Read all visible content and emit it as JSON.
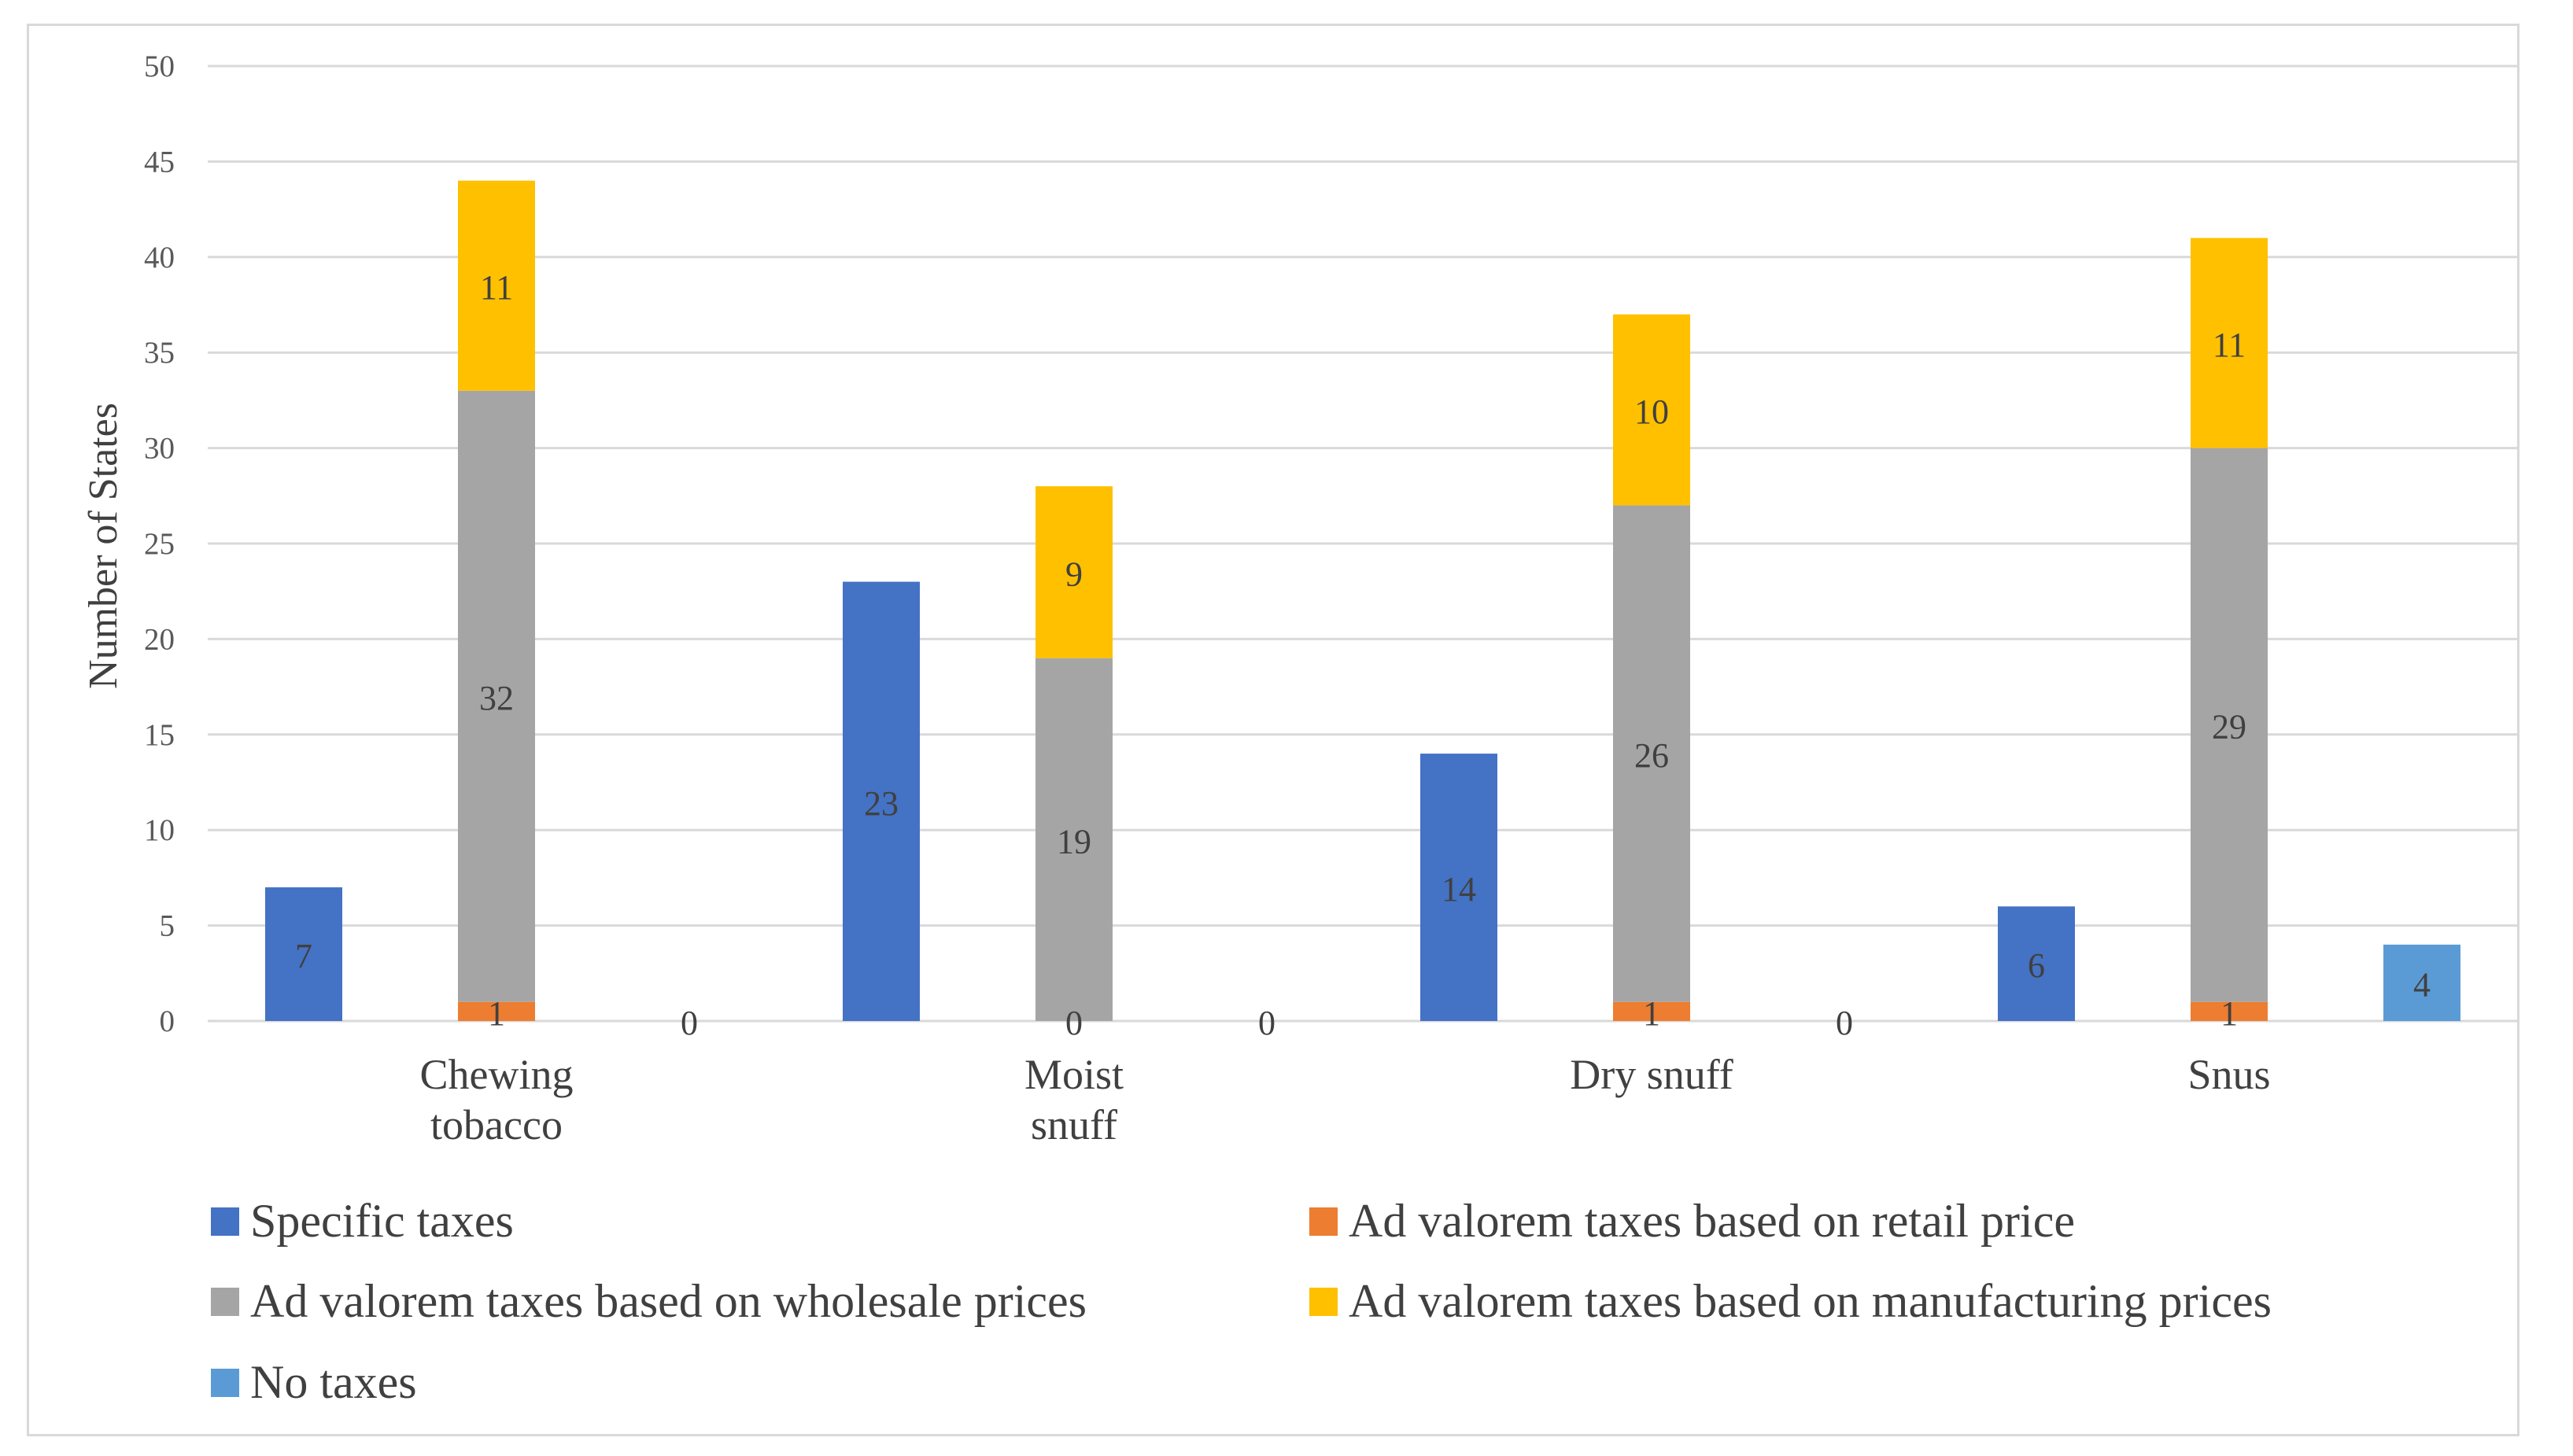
{
  "chart_data": {
    "type": "bar",
    "stacked": true,
    "title": "",
    "xlabel": "",
    "ylabel": "Number of States",
    "ylim": [
      0,
      50
    ],
    "ytick_step": 5,
    "ytick_labels": [
      "0",
      "5",
      "10",
      "15",
      "20",
      "25",
      "30",
      "35",
      "40",
      "45",
      "50"
    ],
    "grid": true,
    "legend_position": "bottom",
    "categories": [
      {
        "label": "Chewing tobacco",
        "lines": [
          "Chewing",
          "tobacco"
        ]
      },
      {
        "label": "Moist snuff",
        "lines": [
          "Moist",
          "snuff"
        ]
      },
      {
        "label": "Dry snuff",
        "lines": [
          "Dry snuff"
        ]
      },
      {
        "label": "Snus",
        "lines": [
          "Snus"
        ]
      }
    ],
    "series": [
      {
        "key": "specific",
        "name": "Specific taxes",
        "color": "#4472c4",
        "values": [
          7,
          23,
          14,
          6
        ],
        "value_labels": [
          "7",
          "23",
          "14",
          "6"
        ]
      },
      {
        "key": "retail",
        "name": "Ad valorem taxes based on retail price",
        "color": "#ed7d31",
        "values": [
          1,
          0,
          1,
          1
        ],
        "value_labels": [
          "1",
          "0",
          "1",
          "1"
        ]
      },
      {
        "key": "wholesale",
        "name": "Ad valorem taxes based on wholesale prices",
        "color": "#a5a5a5",
        "values": [
          32,
          19,
          26,
          29
        ],
        "value_labels": [
          "32",
          "19",
          "26",
          "29"
        ]
      },
      {
        "key": "manufacturing",
        "name": "Ad valorem taxes based on manufacturing prices",
        "color": "#ffc000",
        "values": [
          11,
          9,
          10,
          11
        ],
        "value_labels": [
          "11",
          "9",
          "10",
          "11"
        ]
      },
      {
        "key": "none",
        "name": "No taxes",
        "color": "#5b9bd5",
        "values": [
          0,
          0,
          0,
          4
        ],
        "value_labels": [
          "0",
          "0",
          "0",
          "4"
        ]
      }
    ],
    "bars": [
      {
        "slot": 0,
        "stack": [
          "specific"
        ]
      },
      {
        "slot": 1,
        "stack": [
          "retail",
          "wholesale",
          "manufacturing"
        ]
      },
      {
        "slot": 2,
        "stack": [
          "none"
        ]
      }
    ]
  }
}
